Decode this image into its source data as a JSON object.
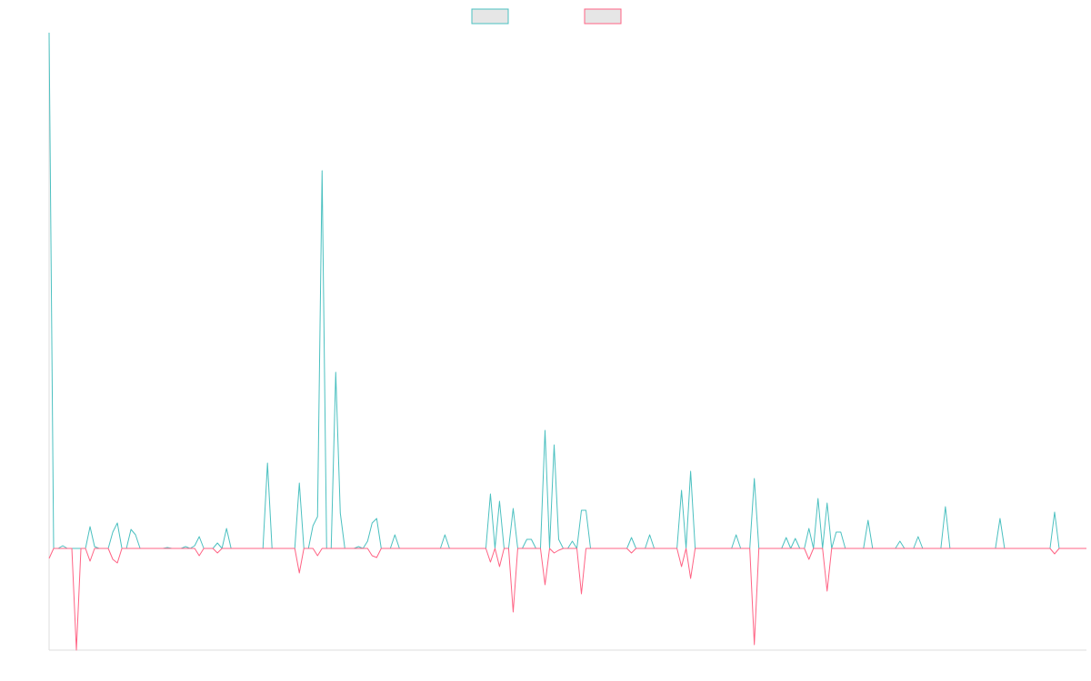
{
  "chart_data": {
    "type": "line",
    "legend": "top",
    "ylim": [
      -112,
      568
    ],
    "series": [
      {
        "color": "#4bc0c0",
        "values": [
          568,
          0,
          0,
          3,
          0,
          0,
          0,
          0,
          0,
          24,
          2,
          0,
          0,
          0,
          18,
          28,
          0,
          0,
          21,
          15,
          0,
          0,
          0,
          0,
          0,
          0,
          1,
          0,
          0,
          0,
          2,
          0,
          3,
          13,
          0,
          0,
          0,
          6,
          0,
          22,
          0,
          0,
          0,
          0,
          0,
          0,
          0,
          0,
          94,
          0,
          0,
          0,
          0,
          0,
          0,
          72,
          0,
          0,
          25,
          35,
          416,
          0,
          0,
          194,
          39,
          0,
          0,
          0,
          2,
          0,
          8,
          28,
          33,
          0,
          0,
          0,
          15,
          0,
          0,
          0,
          0,
          0,
          0,
          0,
          0,
          0,
          0,
          15,
          0,
          0,
          0,
          0,
          0,
          0,
          0,
          0,
          0,
          60,
          0,
          52,
          0,
          0,
          44,
          0,
          0,
          10,
          10,
          0,
          0,
          130,
          0,
          114,
          10,
          0,
          0,
          8,
          0,
          42,
          42,
          0,
          0,
          0,
          0,
          0,
          0,
          0,
          0,
          0,
          12,
          0,
          0,
          0,
          15,
          0,
          0,
          0,
          0,
          0,
          0,
          64,
          0,
          85,
          0,
          0,
          0,
          0,
          0,
          0,
          0,
          0,
          0,
          15,
          0,
          0,
          0,
          77,
          0,
          0,
          0,
          0,
          0,
          0,
          12,
          0,
          11,
          0,
          0,
          22,
          0,
          55,
          0,
          50,
          0,
          18,
          18,
          0,
          0,
          0,
          0,
          0,
          31,
          0,
          0,
          0,
          0,
          0,
          0,
          8,
          0,
          0,
          0,
          13,
          0,
          0,
          0,
          0,
          0,
          46,
          0,
          0,
          0,
          0,
          0,
          0,
          0,
          0,
          0,
          0,
          0,
          33,
          0,
          0,
          0,
          0,
          0,
          0,
          0,
          0,
          0,
          0,
          0,
          40,
          0,
          0,
          0,
          0,
          0,
          0,
          0
        ]
      },
      {
        "color": "#ff6384",
        "values": [
          -11,
          0,
          0,
          0,
          0,
          0,
          -112,
          0,
          0,
          -14,
          0,
          0,
          0,
          0,
          -12,
          -16,
          0,
          0,
          0,
          0,
          0,
          0,
          0,
          0,
          0,
          0,
          0,
          0,
          0,
          0,
          0,
          0,
          0,
          -8,
          0,
          0,
          0,
          -5,
          0,
          0,
          0,
          0,
          0,
          0,
          0,
          0,
          0,
          0,
          0,
          0,
          0,
          0,
          0,
          0,
          0,
          -27,
          0,
          0,
          0,
          -8,
          0,
          0,
          0,
          0,
          0,
          0,
          0,
          0,
          0,
          0,
          0,
          -8,
          -10,
          0,
          0,
          0,
          0,
          0,
          0,
          0,
          0,
          0,
          0,
          0,
          0,
          0,
          0,
          0,
          0,
          0,
          0,
          0,
          0,
          0,
          0,
          0,
          0,
          -15,
          0,
          -20,
          0,
          0,
          -70,
          0,
          0,
          0,
          0,
          0,
          0,
          -40,
          0,
          -5,
          -2,
          0,
          0,
          0,
          0,
          -50,
          0,
          0,
          0,
          0,
          0,
          0,
          0,
          0,
          0,
          0,
          -5,
          0,
          0,
          0,
          0,
          0,
          0,
          0,
          0,
          0,
          0,
          -20,
          0,
          -33,
          0,
          0,
          0,
          0,
          0,
          0,
          0,
          0,
          0,
          0,
          0,
          0,
          0,
          -106,
          0,
          0,
          0,
          0,
          0,
          0,
          0,
          0,
          0,
          0,
          0,
          -12,
          0,
          0,
          0,
          -47,
          0,
          0,
          0,
          0,
          0,
          0,
          0,
          0,
          0,
          0,
          0,
          0,
          0,
          0,
          0,
          0,
          0,
          0,
          0,
          0,
          0,
          0,
          0,
          0,
          0,
          0,
          0,
          0,
          0,
          0,
          0,
          0,
          0,
          0,
          0,
          0,
          0,
          0,
          0,
          0,
          0,
          0,
          0,
          0,
          0,
          0,
          0,
          0,
          0,
          -6,
          0,
          0,
          0,
          0,
          0,
          0,
          0
        ]
      }
    ]
  }
}
